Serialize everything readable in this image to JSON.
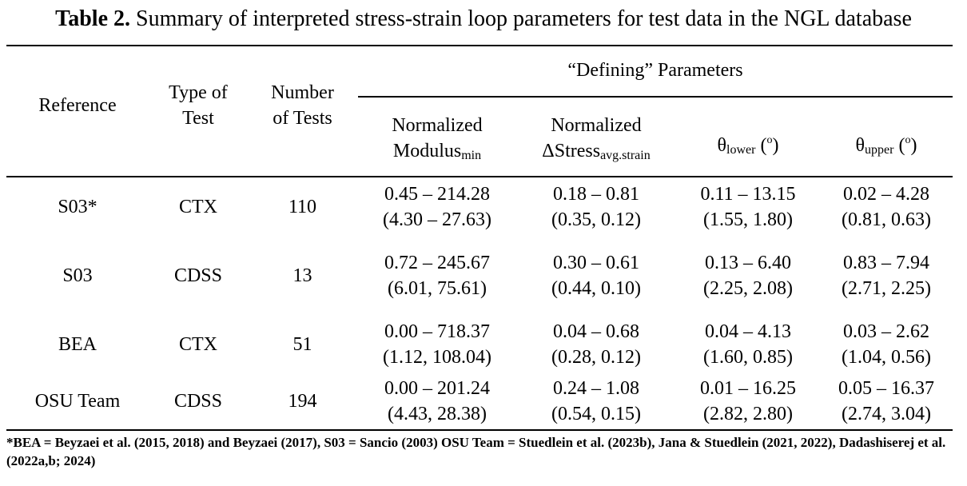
{
  "caption": {
    "label": "Table 2.",
    "text": " Summary of interpreted stress-strain loop parameters for test data in the NGL database"
  },
  "header": {
    "reference": "Reference",
    "type_of_test": [
      "Type of",
      "Test"
    ],
    "number_of_tests": [
      "Number",
      "of Tests"
    ],
    "group": "“Defining” Parameters",
    "modulus": {
      "line1": "Normalized",
      "main": "Modulus",
      "sub": "min"
    },
    "delta_stress": {
      "line1": "Normalized",
      "main": "ΔStress",
      "sub": "avg.strain"
    },
    "theta_lower": {
      "main": "θ",
      "sub": "lower",
      "open": " (",
      "sup": "o",
      "close": ")"
    },
    "theta_upper": {
      "main": "θ",
      "sub": "upper",
      "open": " (",
      "sup": "o",
      "close": ")"
    }
  },
  "rows": [
    {
      "reference": "S03*",
      "type": "CTX",
      "number": "110",
      "modulus": [
        "0.45 – 214.28",
        "(4.30 – 27.63)"
      ],
      "delta_stress": [
        "0.18 – 0.81",
        "(0.35, 0.12)"
      ],
      "theta_lower": [
        "0.11 – 13.15",
        "(1.55, 1.80)"
      ],
      "theta_upper": [
        "0.02 – 4.28",
        "(0.81, 0.63)"
      ]
    },
    {
      "reference": "S03",
      "type": "CDSS",
      "number": "13",
      "modulus": [
        "0.72 – 245.67",
        "(6.01, 75.61)"
      ],
      "delta_stress": [
        "0.30 – 0.61",
        "(0.44, 0.10)"
      ],
      "theta_lower": [
        "0.13 – 6.40",
        "(2.25, 2.08)"
      ],
      "theta_upper": [
        "0.83 – 7.94",
        "(2.71, 2.25)"
      ]
    },
    {
      "reference": "BEA",
      "type": "CTX",
      "number": "51",
      "modulus": [
        "0.00 – 718.37",
        "(1.12, 108.04)"
      ],
      "delta_stress": [
        "0.04 – 0.68",
        "(0.28, 0.12)"
      ],
      "theta_lower": [
        "0.04 – 4.13",
        "(1.60, 0.85)"
      ],
      "theta_upper": [
        "0.03 – 2.62",
        "(1.04, 0.56)"
      ]
    },
    {
      "reference": "OSU Team",
      "type": "CDSS",
      "number": "194",
      "modulus": [
        "0.00 – 201.24",
        "(4.43, 28.38)"
      ],
      "delta_stress": [
        "0.24 – 1.08",
        "(0.54, 0.15)"
      ],
      "theta_lower": [
        "0.01 – 16.25",
        "(2.82, 2.80)"
      ],
      "theta_upper": [
        "0.05 – 16.37",
        "(2.74, 3.04)"
      ]
    }
  ],
  "footnote": "*BEA = Beyzaei et al. (2015, 2018) and Beyzaei (2017), S03 = Sancio (2003) OSU Team = Stuedlein et al. (2023b), Jana & Stuedlein (2021, 2022), Dadashiserej et al. (2022a,b; 2024)"
}
